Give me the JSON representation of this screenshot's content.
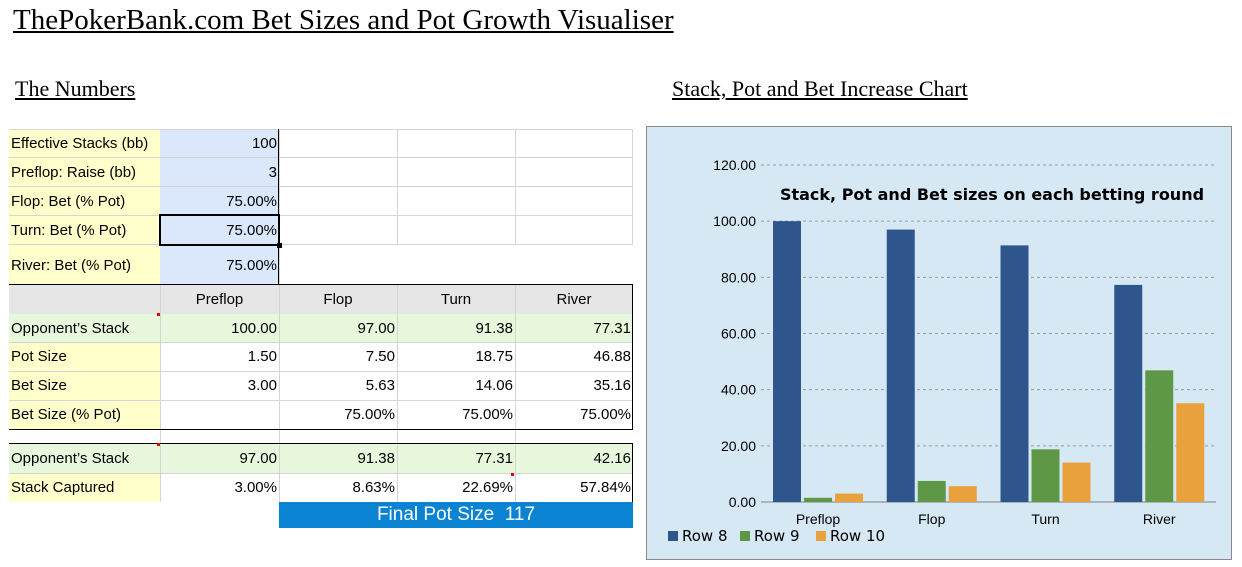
{
  "page": {
    "title": "ThePokerBank.com Bet Sizes and Pot Growth Visualiser",
    "numbers_title": "The Numbers",
    "chart_section_title": "Stack, Pot and Bet Increase Chart"
  },
  "inputs": [
    {
      "label": "Effective Stacks (bb)",
      "value": "100"
    },
    {
      "label": "Preflop: Raise (bb)",
      "value": "3"
    },
    {
      "label": "Flop: Bet (% Pot)",
      "value": "75.00%"
    },
    {
      "label": "Turn: Bet (% Pot)",
      "value": "75.00%"
    },
    {
      "label": "River: Bet (% Pot)",
      "value": "75.00%"
    }
  ],
  "table": {
    "columns": [
      "Preflop",
      "Flop",
      "Turn",
      "River"
    ],
    "rows": [
      {
        "label": "Opponent’s Stack",
        "values": [
          "100.00",
          "97.00",
          "91.38",
          "77.31"
        ]
      },
      {
        "label": "Pot Size",
        "values": [
          "1.50",
          "7.50",
          "18.75",
          "46.88"
        ]
      },
      {
        "label": "Bet Size",
        "values": [
          "3.00",
          "5.63",
          "14.06",
          "35.16"
        ]
      },
      {
        "label": "Bet Size (% Pot)",
        "values": [
          "",
          "75.00%",
          "75.00%",
          "75.00%"
        ]
      }
    ]
  },
  "summary": {
    "rows": [
      {
        "label": "Opponent’s Stack",
        "values": [
          "97.00",
          "91.38",
          "77.31",
          "42.16"
        ]
      },
      {
        "label": "Stack Captured",
        "values": [
          "3.00%",
          "8.63%",
          "22.69%",
          "57.84%"
        ]
      }
    ],
    "final_pot_label": "Final Pot Size",
    "final_pot_value": "117"
  },
  "colors": {
    "row8": "#2e568c",
    "row9": "#5e9745",
    "row10": "#e8a13d",
    "final_bar": "#0a83d2"
  },
  "chart_data": {
    "type": "bar",
    "title": "Stack, Pot and Bet sizes on each betting round",
    "categories": [
      "Preflop",
      "Flop",
      "Turn",
      "River"
    ],
    "series": [
      {
        "name": "Row 8",
        "values": [
          100.0,
          97.0,
          91.38,
          77.31
        ]
      },
      {
        "name": "Row 9",
        "values": [
          1.5,
          7.5,
          18.75,
          46.88
        ]
      },
      {
        "name": "Row 10",
        "values": [
          3.0,
          5.63,
          14.06,
          35.16
        ]
      }
    ],
    "ylim": [
      0,
      120
    ],
    "yticks": [
      "0.00",
      "20.00",
      "40.00",
      "60.00",
      "80.00",
      "100.00",
      "120.00"
    ],
    "grid": true,
    "legend": "bottom-left"
  }
}
